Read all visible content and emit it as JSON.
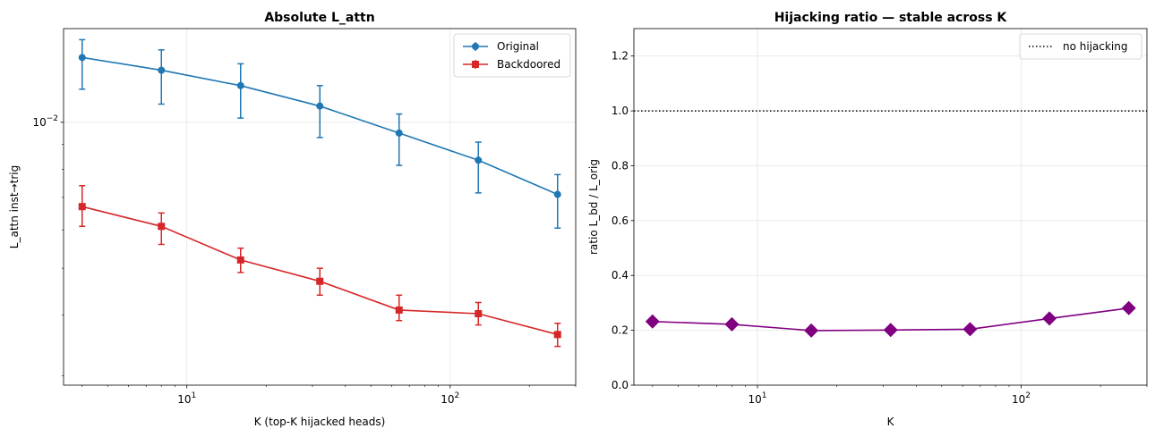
{
  "chart_data": [
    {
      "type": "line",
      "title": "Absolute L_attn",
      "xlabel": "K (top-K hijacked heads)",
      "ylabel": "L_attn inst→trig",
      "xscale": "log",
      "yscale": "log",
      "xlim": [
        3.4,
        300
      ],
      "ylim": [
        0.00287,
        0.0156
      ],
      "x": [
        4,
        8,
        16,
        32,
        64,
        128,
        256
      ],
      "x_ticks": [
        {
          "value": 10,
          "label": "10",
          "exp": "1"
        },
        {
          "value": 100,
          "label": "10",
          "exp": "2"
        }
      ],
      "y_ticks": [
        {
          "value": 0.01,
          "label": "10",
          "exp": "−2"
        }
      ],
      "grid": true,
      "legend_position": "top-right",
      "series": [
        {
          "name": "Original",
          "color": "#1f77b4",
          "marker": "circle",
          "values": [
            0.0136,
            0.0128,
            0.0119,
            0.0108,
            0.0095,
            0.00835,
            0.0071
          ],
          "err_low": [
            0.0117,
            0.0109,
            0.0102,
            0.0093,
            0.00815,
            0.00715,
            0.00605
          ],
          "err_high": [
            0.0148,
            0.0141,
            0.0132,
            0.0119,
            0.0104,
            0.0091,
            0.0078
          ]
        },
        {
          "name": "Backdoored",
          "color": "#d62728",
          "marker": "square",
          "values": [
            0.0067,
            0.0061,
            0.0052,
            0.0047,
            0.0041,
            0.00403,
            0.00365
          ],
          "err_low": [
            0.0061,
            0.0056,
            0.0049,
            0.0044,
            0.0039,
            0.00382,
            0.00345
          ],
          "err_high": [
            0.0074,
            0.0065,
            0.0055,
            0.005,
            0.0044,
            0.00425,
            0.00385
          ]
        }
      ]
    },
    {
      "type": "line",
      "title": "Hijacking ratio — stable across K",
      "xlabel": "K",
      "ylabel": "ratio L_bd / L_orig",
      "xscale": "log",
      "xlim": [
        3.4,
        300
      ],
      "ylim": [
        0,
        1.3
      ],
      "x": [
        4,
        8,
        16,
        32,
        64,
        128,
        256
      ],
      "x_ticks": [
        {
          "value": 10,
          "label": "10",
          "exp": "1"
        },
        {
          "value": 100,
          "label": "10",
          "exp": "2"
        }
      ],
      "y_ticks": [
        0.0,
        0.2,
        0.4,
        0.6,
        0.8,
        1.0,
        1.2
      ],
      "grid": true,
      "legend_position": "top-right",
      "series": [
        {
          "name": "",
          "color": "#800080",
          "marker": "diamond",
          "values": [
            0.232,
            0.222,
            0.199,
            0.201,
            0.204,
            0.243,
            0.281
          ]
        }
      ],
      "reference_line": {
        "y": 1.0,
        "name": "no hijacking",
        "style": "dotted",
        "color": "#000000"
      }
    }
  ]
}
